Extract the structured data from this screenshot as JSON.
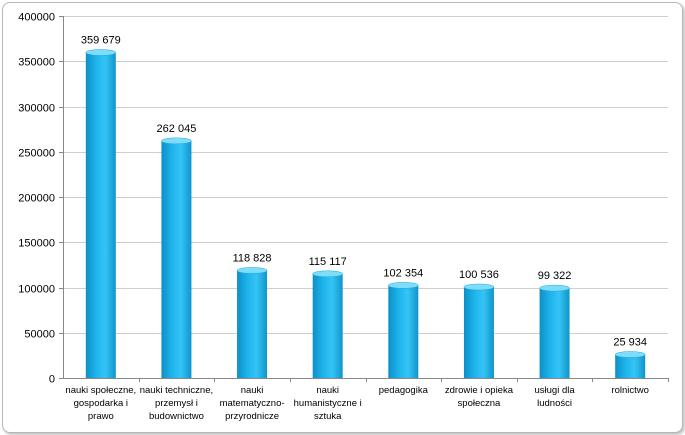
{
  "chart_data": {
    "type": "bar",
    "categories": [
      [
        "nauki społeczne,",
        "gospodarka i",
        "prawo"
      ],
      [
        "nauki techniczne,",
        "przemysł i",
        "budownictwo"
      ],
      [
        "nauki",
        "matematyczno-",
        "przyrodnicze"
      ],
      [
        "nauki",
        "humanistyczne i",
        "sztuka"
      ],
      [
        "pedagogika"
      ],
      [
        "zdrowie i opieka",
        "społeczna"
      ],
      [
        "usługi dla",
        "ludności"
      ],
      [
        "rolnictwo"
      ]
    ],
    "values": [
      359679,
      262045,
      118828,
      115117,
      102354,
      100536,
      99322,
      25934
    ],
    "data_labels": [
      "359 679",
      "262 045",
      "118 828",
      "115 117",
      "102 354",
      "100 536",
      "99 322",
      "25 934"
    ],
    "yticks": [
      "0",
      "50000",
      "100000",
      "150000",
      "200000",
      "250000",
      "300000",
      "350000",
      "400000"
    ],
    "ylim": [
      0,
      400000
    ],
    "grid": true,
    "legend": "none",
    "bar_color": "#1EB4EC",
    "bar_top_color": "#7FDDFB",
    "gridline_color": "#CFCFCF"
  }
}
